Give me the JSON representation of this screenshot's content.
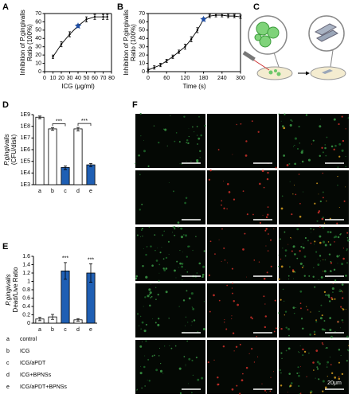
{
  "panels": {
    "a": "A",
    "b": "B",
    "c": "C",
    "d": "D",
    "e": "E",
    "f": "F"
  },
  "chart_data": [
    {
      "type": "line",
      "ylabel": [
        "Inhibition of P.gingivalis",
        "Ratio (100%)"
      ],
      "xlabel": "ICG (μg/ml)",
      "x": [
        10,
        20,
        30,
        40,
        50,
        60,
        70,
        75
      ],
      "values": [
        18,
        33,
        45,
        55,
        63,
        66,
        66,
        66
      ],
      "errors": [
        2,
        3,
        3,
        2,
        3,
        3,
        3,
        3
      ],
      "star_x": 40,
      "color": "#000000",
      "star_color": "#1f4fa8",
      "xlim": [
        0,
        80
      ],
      "xticks": [
        0,
        10,
        20,
        30,
        40,
        50,
        60,
        70,
        80
      ],
      "ylim": [
        0,
        70
      ],
      "yticks": [
        0,
        10,
        20,
        30,
        40,
        50,
        60,
        70
      ],
      "frame": true
    },
    {
      "type": "line",
      "ylabel": [
        "Inhibition of P.gingivalis",
        "Ratio (100%)"
      ],
      "xlabel": "Time (s)",
      "x": [
        0,
        20,
        40,
        60,
        80,
        100,
        120,
        140,
        160,
        180,
        200,
        220,
        240,
        260,
        280,
        300
      ],
      "values": [
        2,
        5,
        8,
        13,
        18,
        24,
        30,
        39,
        50,
        63,
        67,
        68,
        68,
        67,
        67,
        66
      ],
      "errors": [
        2,
        2,
        2,
        2,
        2,
        2,
        3,
        3,
        3,
        2,
        2,
        2,
        2,
        2,
        2,
        2
      ],
      "star_x": 180,
      "color": "#000000",
      "star_color": "#1f4fa8",
      "xlim": [
        0,
        300
      ],
      "xticks": [
        0,
        60,
        120,
        180,
        240,
        300
      ],
      "ylim": [
        0,
        70
      ],
      "yticks": [
        0,
        10,
        20,
        30,
        40,
        50,
        60,
        70
      ],
      "frame": true
    },
    {
      "type": "bar",
      "ylabel": [
        "P.gingivalis",
        "(CFU/disk)"
      ],
      "log_scale": true,
      "categories": [
        "a",
        "b",
        "c",
        "d",
        "e"
      ],
      "values": [
        600000000,
        60000000,
        30000,
        60000000,
        50000
      ],
      "errors": [
        150000000,
        15000000,
        10000,
        20000000,
        15000
      ],
      "colors": [
        "#ffffff",
        "#ffffff",
        "#1f5fb4",
        "#ffffff",
        "#1f5fb4"
      ],
      "ylim": [
        1000,
        1000000000
      ],
      "yticks": [
        {
          "value": 1000,
          "label": "1E3"
        },
        {
          "value": 10000,
          "label": "1E4"
        },
        {
          "value": 100000,
          "label": "1E5"
        },
        {
          "value": 1000000,
          "label": "1E6"
        },
        {
          "value": 10000000,
          "label": "1E7"
        },
        {
          "value": 100000000,
          "label": "1E8"
        },
        {
          "value": 1000000000,
          "label": "1E9"
        }
      ],
      "annotations": [
        {
          "label": "***",
          "between": [
            "b",
            "c"
          ]
        },
        {
          "label": "***",
          "between": [
            "d",
            "e"
          ]
        }
      ]
    },
    {
      "type": "bar",
      "ylabel": [
        "P.gingivalis",
        "Dead/Live Ratio"
      ],
      "categories": [
        "a",
        "b",
        "c",
        "d",
        "e"
      ],
      "values": [
        0.1,
        0.15,
        1.25,
        0.08,
        1.2
      ],
      "errors": [
        0.04,
        0.06,
        0.2,
        0.03,
        0.22
      ],
      "colors": [
        "#ffffff",
        "#ffffff",
        "#1f5fb4",
        "#ffffff",
        "#1f5fb4"
      ],
      "ylim": [
        0,
        1.6
      ],
      "yticks": [
        0,
        0.2,
        0.4,
        0.6,
        0.8,
        1,
        1.2,
        1.4,
        1.6
      ],
      "annotations": [
        {
          "label": "***",
          "over": "c"
        },
        {
          "label": "***",
          "over": "e"
        }
      ]
    }
  ],
  "legend": [
    [
      "a",
      "control"
    ],
    [
      "b",
      "ICG"
    ],
    [
      "c",
      "ICG/aPDT"
    ],
    [
      "d",
      "ICG+BPNSs"
    ],
    [
      "e",
      "ICG/aPDT+BPNSs"
    ]
  ],
  "scale_bar": "20μm"
}
